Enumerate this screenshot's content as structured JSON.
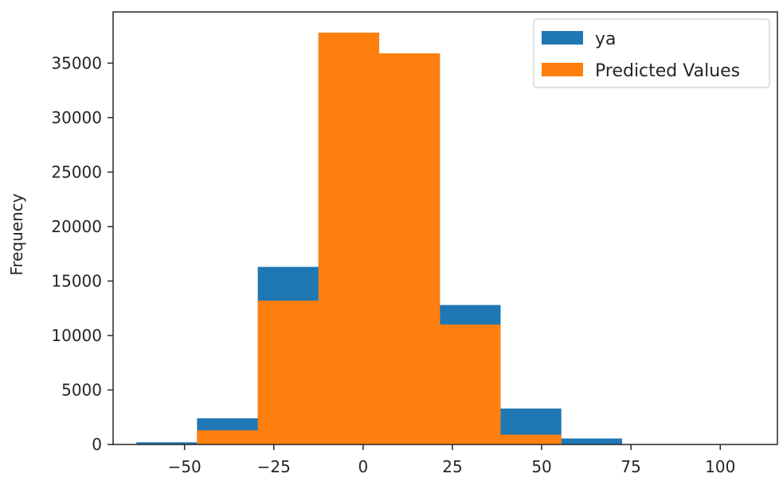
{
  "chart_data": {
    "type": "bar",
    "subtype": "histogram-overlay",
    "title": "",
    "xlabel": "",
    "ylabel": "Frequency",
    "xlim": [
      -70,
      116
    ],
    "ylim": [
      0,
      39700
    ],
    "xticks": [
      -50,
      -25,
      0,
      25,
      50,
      75,
      100
    ],
    "xtick_labels": [
      "−50",
      "−25",
      "0",
      "25",
      "50",
      "75",
      "100"
    ],
    "yticks": [
      0,
      5000,
      10000,
      15000,
      20000,
      25000,
      30000,
      35000
    ],
    "ytick_labels": [
      "0",
      "5000",
      "10000",
      "15000",
      "20000",
      "25000",
      "30000",
      "35000"
    ],
    "grid": false,
    "legend_position": "top-right",
    "series": [
      {
        "name": "ya",
        "color": "#1f77b4",
        "bins": [
          {
            "x0": -63.5,
            "x1": -46.5,
            "value": 200
          },
          {
            "x0": -46.5,
            "x1": -29.5,
            "value": 2400
          },
          {
            "x0": -29.5,
            "x1": -12.5,
            "value": 16300
          },
          {
            "x0": -12.5,
            "x1": 4.5,
            "value": 37800
          },
          {
            "x0": 4.5,
            "x1": 21.5,
            "value": 35800
          },
          {
            "x0": 21.5,
            "x1": 38.5,
            "value": 12800
          },
          {
            "x0": 38.5,
            "x1": 55.5,
            "value": 3300
          },
          {
            "x0": 55.5,
            "x1": 72.5,
            "value": 550
          },
          {
            "x0": 72.5,
            "x1": 89.5,
            "value": 30
          },
          {
            "x0": 89.5,
            "x1": 106.5,
            "value": 5
          }
        ]
      },
      {
        "name": "Predicted Values",
        "color": "#ff7f0e",
        "bins": [
          {
            "x0": -46.5,
            "x1": -29.5,
            "value": 1300
          },
          {
            "x0": -29.5,
            "x1": -12.5,
            "value": 13200
          },
          {
            "x0": -12.5,
            "x1": 4.5,
            "value": 37800
          },
          {
            "x0": 4.5,
            "x1": 21.5,
            "value": 35900
          },
          {
            "x0": 21.5,
            "x1": 38.5,
            "value": 11000
          },
          {
            "x0": 38.5,
            "x1": 55.5,
            "value": 900
          }
        ]
      }
    ]
  }
}
